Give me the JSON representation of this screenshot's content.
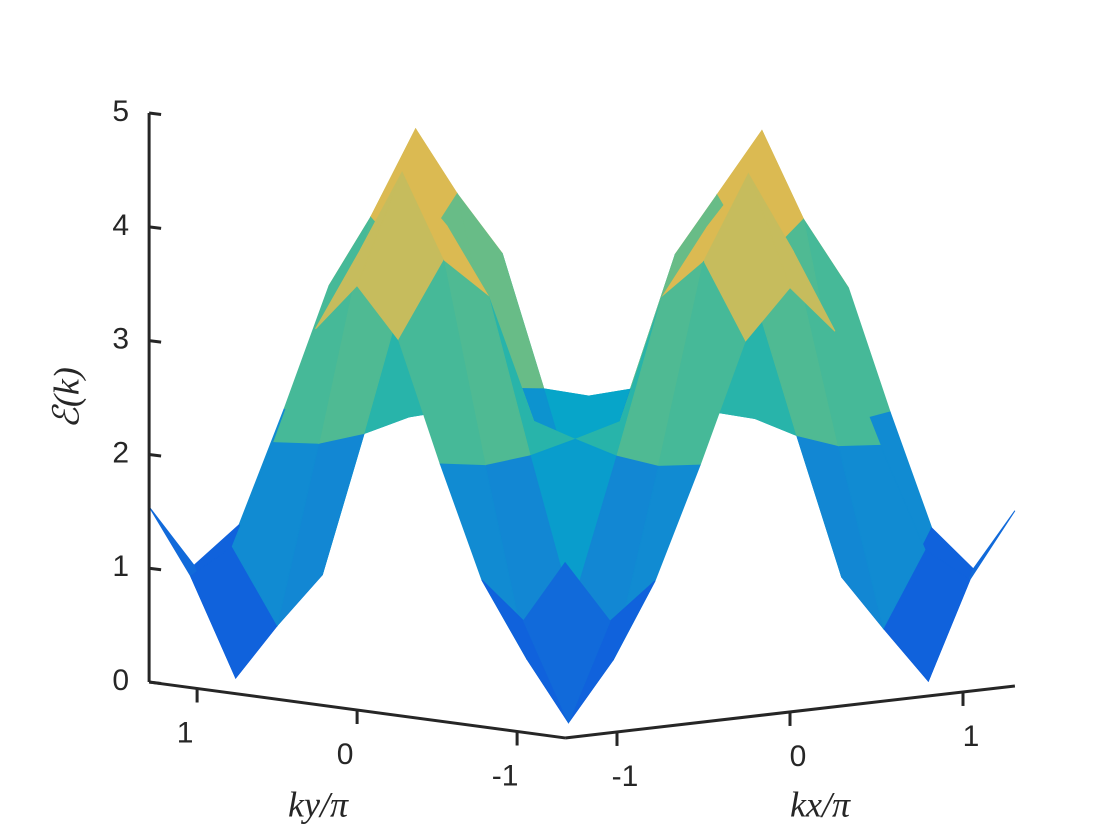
{
  "chart_data": {
    "type": "surface",
    "xlabel": "kx/π",
    "ylabel": "ky/π",
    "zlabel": "ℰ(k)",
    "colormap": "parula",
    "x": [
      -1.3,
      -1.04,
      -0.78,
      -0.52,
      -0.26,
      0,
      0.26,
      0.52,
      0.78,
      1.04,
      1.3
    ],
    "y": [
      -1.3,
      -1.04,
      -0.78,
      -0.52,
      -0.26,
      0,
      0.26,
      0.52,
      0.78,
      1.04,
      1.3
    ],
    "z": [
      [
        1.54,
        0.98,
        1.29,
        2.26,
        3.3,
        3.73,
        3.3,
        2.26,
        1.29,
        0.98,
        1.54
      ],
      [
        0.98,
        0.04,
        0.55,
        2.2,
        3.95,
        4.68,
        3.95,
        2.2,
        0.55,
        0.04,
        0.98
      ],
      [
        1.29,
        0.55,
        0.95,
        2.24,
        3.59,
        4.16,
        3.59,
        2.24,
        0.95,
        0.55,
        1.29
      ],
      [
        2.26,
        2.2,
        2.24,
        2.34,
        2.45,
        2.5,
        2.45,
        2.34,
        2.24,
        2.2,
        2.26
      ],
      [
        3.3,
        3.95,
        3.59,
        2.45,
        1.25,
        0.74,
        1.25,
        2.45,
        3.59,
        3.95,
        3.3
      ],
      [
        3.73,
        4.68,
        4.16,
        2.5,
        0.74,
        0,
        0.74,
        2.5,
        4.16,
        4.68,
        3.73
      ],
      [
        3.3,
        3.95,
        3.59,
        2.45,
        1.25,
        0.74,
        1.25,
        2.45,
        3.59,
        3.95,
        3.3
      ],
      [
        2.26,
        2.2,
        2.24,
        2.34,
        2.45,
        2.5,
        2.45,
        2.34,
        2.24,
        2.2,
        2.26
      ],
      [
        1.29,
        0.55,
        0.95,
        2.24,
        3.59,
        4.16,
        3.59,
        2.24,
        0.95,
        0.55,
        1.29
      ],
      [
        0.98,
        0.04,
        0.55,
        2.2,
        3.95,
        4.68,
        3.95,
        2.2,
        0.55,
        0.04,
        0.98
      ],
      [
        1.54,
        0.98,
        1.29,
        2.26,
        3.3,
        3.73,
        3.3,
        2.26,
        1.29,
        0.98,
        1.54
      ]
    ],
    "xlim": [
      -1.3,
      1.3
    ],
    "ylim": [
      -1.3,
      1.3
    ],
    "zlim": [
      0,
      5
    ],
    "xticks": [
      -1,
      0,
      1
    ],
    "yticks": [
      -1,
      0,
      1
    ],
    "zticks": [
      0,
      1,
      2,
      3,
      4,
      5
    ]
  }
}
